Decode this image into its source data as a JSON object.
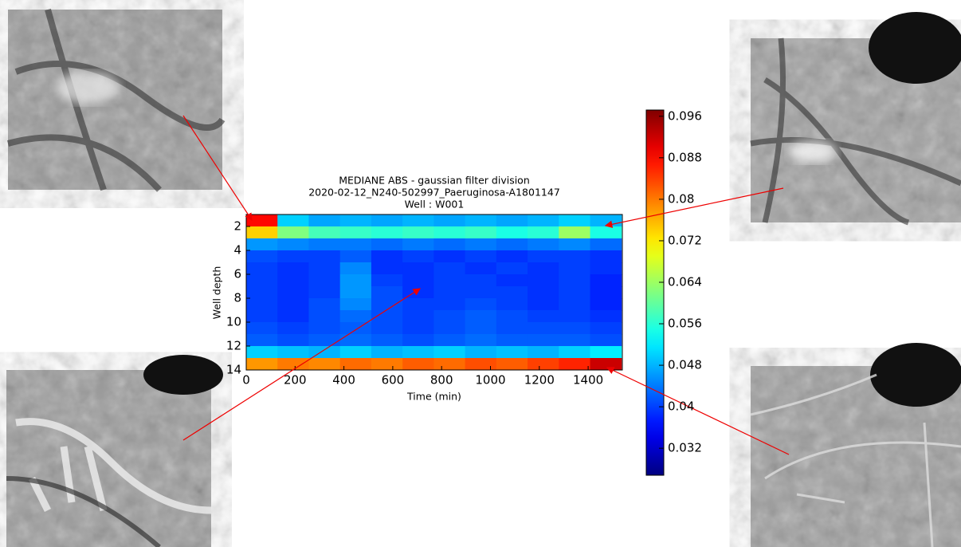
{
  "chart_data": {
    "type": "heatmap",
    "title": [
      "MEDIANE ABS - gaussian filter division",
      "2020-02-12_N240-502997_Paeruginosa-A1801147",
      "Well : W001"
    ],
    "x_label": "Time (min)",
    "y_label": "Well depth",
    "x": [
      64,
      192,
      320,
      448,
      576,
      704,
      832,
      960,
      1088,
      1216,
      1344,
      1472
    ],
    "y": [
      1.5,
      2.5,
      3.5,
      4.5,
      5.5,
      6.5,
      7.5,
      8.5,
      9.5,
      10.5,
      11.5,
      12.5,
      13.5
    ],
    "z": [
      [
        0.088,
        0.05,
        0.047,
        0.048,
        0.047,
        0.048,
        0.047,
        0.048,
        0.047,
        0.048,
        0.05,
        0.048
      ],
      [
        0.074,
        0.062,
        0.058,
        0.057,
        0.056,
        0.057,
        0.056,
        0.057,
        0.055,
        0.056,
        0.064,
        0.055
      ],
      [
        0.046,
        0.045,
        0.044,
        0.044,
        0.043,
        0.044,
        0.043,
        0.044,
        0.043,
        0.044,
        0.045,
        0.043
      ],
      [
        0.041,
        0.04,
        0.04,
        0.042,
        0.039,
        0.04,
        0.039,
        0.04,
        0.039,
        0.04,
        0.04,
        0.039
      ],
      [
        0.04,
        0.039,
        0.04,
        0.045,
        0.039,
        0.039,
        0.04,
        0.039,
        0.04,
        0.039,
        0.04,
        0.039
      ],
      [
        0.04,
        0.039,
        0.04,
        0.046,
        0.04,
        0.039,
        0.04,
        0.04,
        0.039,
        0.039,
        0.04,
        0.038
      ],
      [
        0.04,
        0.039,
        0.04,
        0.046,
        0.041,
        0.039,
        0.04,
        0.04,
        0.04,
        0.039,
        0.04,
        0.038
      ],
      [
        0.04,
        0.039,
        0.041,
        0.045,
        0.041,
        0.04,
        0.04,
        0.041,
        0.04,
        0.039,
        0.04,
        0.038
      ],
      [
        0.04,
        0.039,
        0.041,
        0.043,
        0.041,
        0.04,
        0.041,
        0.042,
        0.041,
        0.04,
        0.04,
        0.039
      ],
      [
        0.041,
        0.04,
        0.041,
        0.042,
        0.041,
        0.04,
        0.041,
        0.042,
        0.041,
        0.041,
        0.041,
        0.04
      ],
      [
        0.042,
        0.041,
        0.042,
        0.043,
        0.042,
        0.041,
        0.042,
        0.043,
        0.042,
        0.042,
        0.042,
        0.041
      ],
      [
        0.05,
        0.049,
        0.048,
        0.05,
        0.048,
        0.049,
        0.05,
        0.048,
        0.049,
        0.048,
        0.05,
        0.052
      ],
      [
        0.078,
        0.08,
        0.079,
        0.081,
        0.08,
        0.082,
        0.081,
        0.083,
        0.082,
        0.084,
        0.086,
        0.092
      ]
    ],
    "xlim": [
      0,
      1540
    ],
    "ylim": [
      14,
      1
    ],
    "xticks": [
      0,
      200,
      400,
      600,
      800,
      1000,
      1200,
      1400
    ],
    "yticks": [
      2,
      4,
      6,
      8,
      10,
      12,
      14
    ],
    "colormap": "jet",
    "clim": [
      0.0268,
      0.0972
    ],
    "cticks": [
      0.032,
      0.04,
      0.048,
      0.056,
      0.064,
      0.072,
      0.08,
      0.088,
      0.096
    ]
  }
}
